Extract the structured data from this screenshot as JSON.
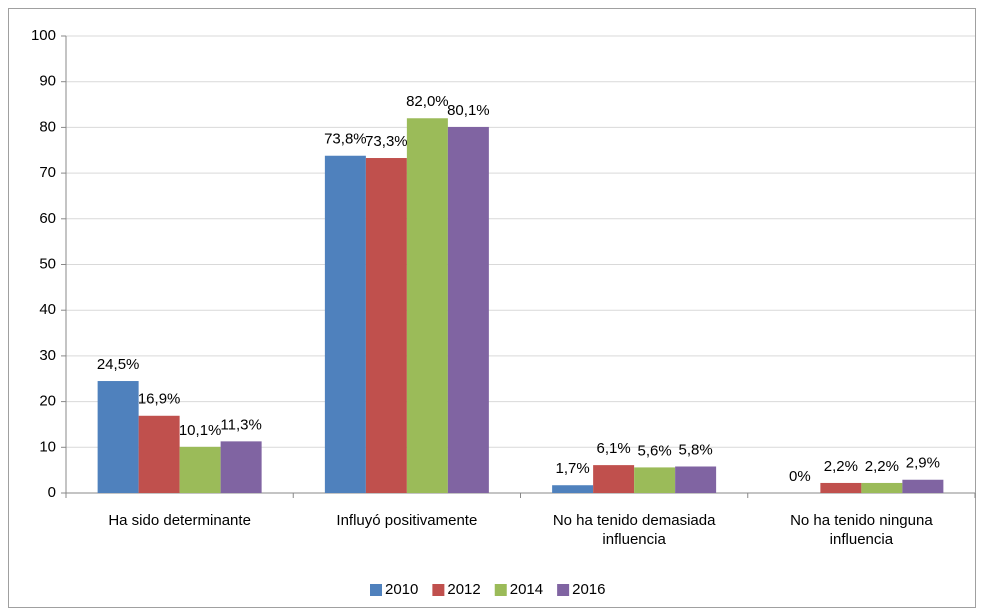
{
  "chart_data": {
    "type": "bar",
    "categories": [
      "Ha sido determinante",
      "Influyó positivamente",
      "No ha tenido demasiada influencia",
      "No ha tenido ninguna influencia"
    ],
    "series": [
      {
        "name": "2010",
        "color": "#4f81bd",
        "values": [
          24.5,
          73.8,
          1.7,
          0
        ],
        "value_labels": [
          "24,5%",
          "73,8%",
          "1,7%",
          "0%"
        ]
      },
      {
        "name": "2012",
        "color": "#c0504d",
        "values": [
          16.9,
          73.3,
          6.1,
          2.2
        ],
        "value_labels": [
          "16,9%",
          "73,3%",
          "6,1%",
          "2,2%"
        ]
      },
      {
        "name": "2014",
        "color": "#9bbb59",
        "values": [
          10.1,
          82.0,
          5.6,
          2.2
        ],
        "value_labels": [
          "10,1%",
          "82,0%",
          "5,6%",
          "2,2%"
        ]
      },
      {
        "name": "2016",
        "color": "#8064a2",
        "values": [
          11.3,
          80.1,
          5.8,
          2.9
        ],
        "value_labels": [
          "11,3%",
          "80,1%",
          "5,8%",
          "2,9%"
        ]
      }
    ],
    "ylim": [
      0,
      100
    ],
    "yticks": [
      0,
      10,
      20,
      30,
      40,
      50,
      60,
      70,
      80,
      90,
      100
    ],
    "grid": true,
    "legend": "bottom"
  }
}
